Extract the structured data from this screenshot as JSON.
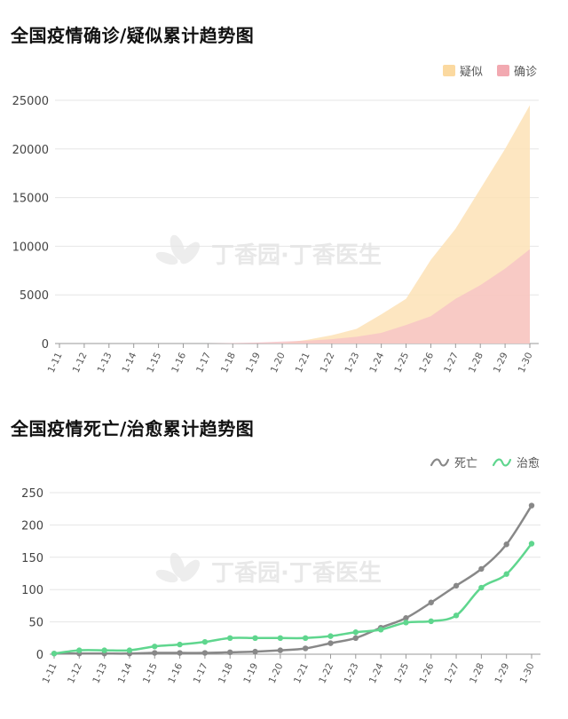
{
  "watermark": "丁香园·丁香医生",
  "colors": {
    "suspected": "#fde2b6",
    "suspected_legend": "#fbd9a0",
    "confirmed": "#f6c0c6",
    "confirmed_legend": "#f2a9b1",
    "death": "#888888",
    "cured": "#5fd68e",
    "grid": "#e6e6e6",
    "axis": "#999999"
  },
  "chart_data": [
    {
      "type": "area",
      "title": "全国疫情确诊/疑似累计趋势图",
      "categories": [
        "1-11",
        "1-12",
        "1-13",
        "1-14",
        "1-15",
        "1-16",
        "1-17",
        "1-18",
        "1-19",
        "1-20",
        "1-21",
        "1-22",
        "1-23",
        "1-24",
        "1-25",
        "1-26",
        "1-27",
        "1-28",
        "1-29",
        "1-30"
      ],
      "ylim": [
        0,
        25000
      ],
      "yticks": [
        0,
        5000,
        10000,
        15000,
        20000,
        25000
      ],
      "legend_position": "top-right",
      "grid": true,
      "series": [
        {
          "name": "疑似",
          "values": [
            0,
            0,
            0,
            0,
            0,
            0,
            0,
            0,
            0,
            50,
            380,
            850,
            1500,
            3000,
            4600,
            8600,
            11800,
            15900,
            20000,
            24500
          ]
        },
        {
          "name": "确诊",
          "values": [
            0,
            0,
            0,
            0,
            0,
            0,
            0,
            50,
            100,
            200,
            300,
            450,
            700,
            1100,
            1900,
            2800,
            4600,
            6000,
            7700,
            9700
          ]
        }
      ]
    },
    {
      "type": "line",
      "title": "全国疫情死亡/治愈累计趋势图",
      "categories": [
        "1-11",
        "1-12",
        "1-13",
        "1-14",
        "1-15",
        "1-16",
        "1-17",
        "1-18",
        "1-19",
        "1-20",
        "1-21",
        "1-22",
        "1-23",
        "1-24",
        "1-25",
        "1-26",
        "1-27",
        "1-28",
        "1-29",
        "1-30"
      ],
      "ylim": [
        0,
        250
      ],
      "yticks": [
        0,
        50,
        100,
        150,
        200,
        250
      ],
      "legend_position": "top-right",
      "grid": true,
      "series": [
        {
          "name": "死亡",
          "values": [
            1,
            1,
            1,
            1,
            2,
            2,
            2,
            3,
            4,
            6,
            9,
            17,
            25,
            41,
            56,
            80,
            106,
            132,
            170,
            230
          ]
        },
        {
          "name": "治愈",
          "values": [
            1,
            6,
            6,
            6,
            12,
            15,
            19,
            25,
            25,
            25,
            25,
            28,
            34,
            38,
            49,
            51,
            60,
            103,
            124,
            171
          ]
        }
      ]
    }
  ]
}
